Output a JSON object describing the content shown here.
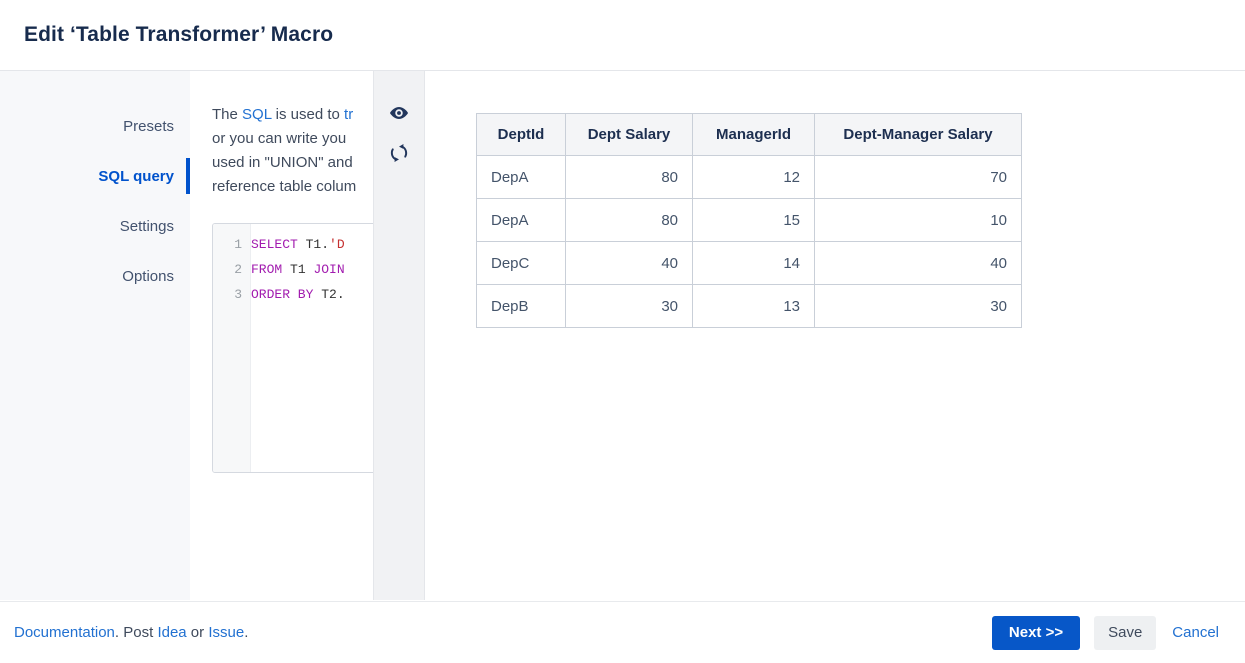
{
  "header": {
    "title": "Edit ‘Table Transformer’ Macro"
  },
  "sidebar": {
    "items": [
      {
        "label": "Presets",
        "active": false
      },
      {
        "label": "SQL query",
        "active": true
      },
      {
        "label": "Settings",
        "active": false
      },
      {
        "label": "Options",
        "active": false
      }
    ]
  },
  "panel": {
    "description_lines": [
      {
        "segments": [
          {
            "text": "The ",
            "link": false
          },
          {
            "text": "SQL",
            "link": true
          },
          {
            "text": " is used to ",
            "link": false
          },
          {
            "text": "tr",
            "link": true
          }
        ]
      },
      {
        "segments": [
          {
            "text": "or you can write you",
            "link": false
          }
        ]
      },
      {
        "segments": [
          {
            "text": "used in \"UNION\" and",
            "link": false
          }
        ]
      },
      {
        "segments": [
          {
            "text": "reference table colum",
            "link": false
          }
        ]
      }
    ],
    "editor": {
      "lines": [
        {
          "number": "1",
          "tokens": [
            {
              "text": "SELECT",
              "type": "keyword"
            },
            {
              "text": " T1.",
              "type": "plain"
            },
            {
              "text": "'D",
              "type": "string"
            }
          ]
        },
        {
          "number": "2",
          "tokens": [
            {
              "text": "FROM",
              "type": "keyword"
            },
            {
              "text": " T1 ",
              "type": "plain"
            },
            {
              "text": "JOIN",
              "type": "keyword"
            }
          ]
        },
        {
          "number": "3",
          "tokens": [
            {
              "text": "ORDER BY",
              "type": "keyword"
            },
            {
              "text": " T2.",
              "type": "plain"
            }
          ]
        }
      ]
    },
    "icons": [
      {
        "name": "eye-icon"
      },
      {
        "name": "refresh-icon"
      }
    ]
  },
  "table": {
    "columns": [
      "DeptId",
      "Dept Salary",
      "ManagerId",
      "Dept-Manager Salary"
    ],
    "rows": [
      [
        "DepA",
        "80",
        "12",
        "70"
      ],
      [
        "DepA",
        "80",
        "15",
        "10"
      ],
      [
        "DepC",
        "40",
        "14",
        "40"
      ],
      [
        "DepB",
        "30",
        "13",
        "30"
      ]
    ]
  },
  "footer": {
    "links_segments": [
      {
        "text": "Documentation",
        "link": true
      },
      {
        "text": ". Post ",
        "link": false
      },
      {
        "text": "Idea",
        "link": true
      },
      {
        "text": " or ",
        "link": false
      },
      {
        "text": "Issue",
        "link": true
      },
      {
        "text": ".",
        "link": false
      }
    ],
    "buttons": {
      "next": "Next >>",
      "save": "Save",
      "cancel": "Cancel"
    }
  },
  "colors": {
    "accent": "#0052cc",
    "link": "#2271d1",
    "title_text": "#172b4d",
    "keyword": "#a21caf",
    "string": "#c53030",
    "primary_button": "#0757c8",
    "table_border": "#c9cfd8",
    "table_header_bg": "#f4f5f7"
  }
}
